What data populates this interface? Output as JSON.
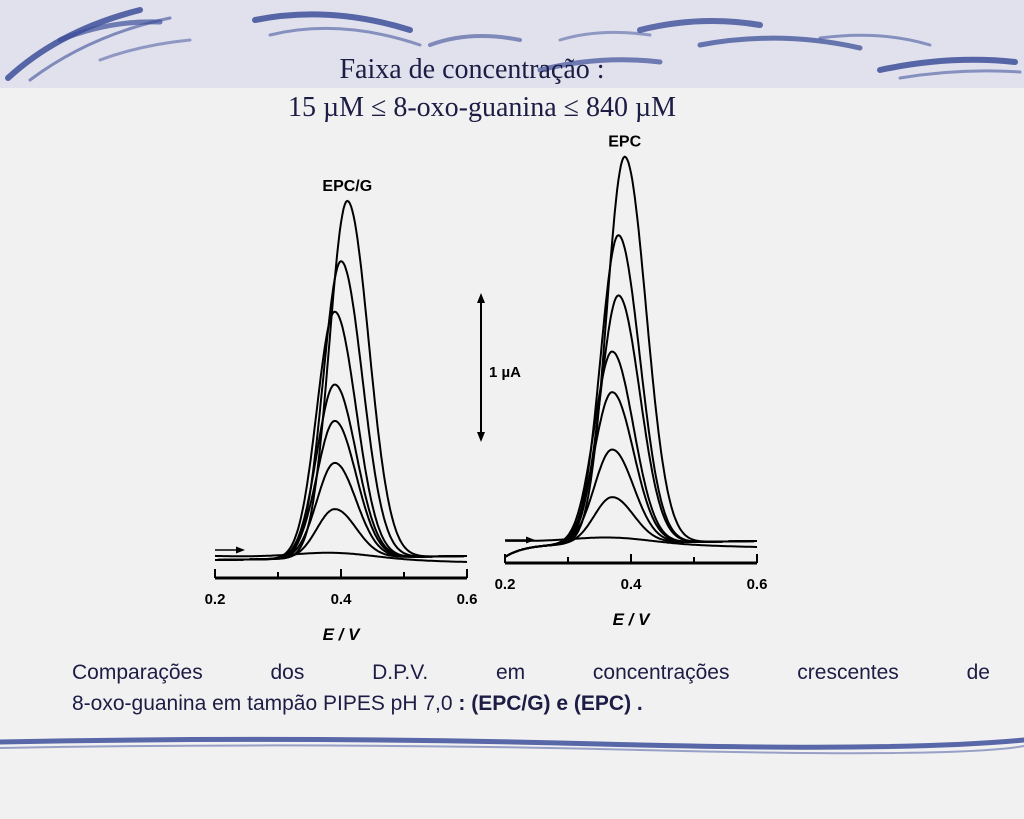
{
  "slide": {
    "title_line_1": "Faixa de concentração :",
    "title_line_2": "15 µM ≤ 8-oxo-guanina ≤ 840 µM",
    "caption_words_line_1": [
      "Comparações",
      "dos",
      "D.P.V.",
      "em",
      "concentrações",
      "crescentes",
      "de"
    ],
    "caption_line_2_plain": "8-oxo-guanina em tampão PIPES pH 7,0 ",
    "caption_line_2_bold": ": (EPC/G) e  (EPC) .",
    "scale_bar_label": "1 µA",
    "colors": {
      "background": "#f1f1f2",
      "text": "#1c1c44",
      "decoration": "#3d4f9a",
      "trace": "#000000"
    }
  },
  "chart_data": [
    {
      "type": "line",
      "label": "EPC/G",
      "xlabel": "E / V",
      "ylabel": "",
      "xlim": [
        0.2,
        0.6
      ],
      "x_ticks": [
        "0.2",
        "0.4",
        "0.6"
      ],
      "units_y": "µA",
      "scale_bar_uA": 1,
      "peak_potential_V": 0.39,
      "series": [
        {
          "peak_current_uA": 0.0,
          "peak_x": 0.39
        },
        {
          "peak_current_uA": 0.35,
          "peak_x": 0.39
        },
        {
          "peak_current_uA": 0.68,
          "peak_x": 0.39
        },
        {
          "peak_current_uA": 0.98,
          "peak_x": 0.39
        },
        {
          "peak_current_uA": 1.24,
          "peak_x": 0.39
        },
        {
          "peak_current_uA": 1.76,
          "peak_x": 0.39
        },
        {
          "peak_current_uA": 2.12,
          "peak_x": 0.4
        },
        {
          "peak_current_uA": 2.55,
          "peak_x": 0.41
        }
      ]
    },
    {
      "type": "line",
      "label": "EPC",
      "xlabel": "E / V",
      "ylabel": "",
      "xlim": [
        0.2,
        0.6
      ],
      "x_ticks": [
        "0.2",
        "0.4",
        "0.6"
      ],
      "units_y": "µA",
      "scale_bar_uA": 1,
      "peak_potential_V": 0.37,
      "series": [
        {
          "peak_current_uA": 0.0,
          "peak_x": 0.37
        },
        {
          "peak_current_uA": 0.33,
          "peak_x": 0.37
        },
        {
          "peak_current_uA": 0.67,
          "peak_x": 0.37
        },
        {
          "peak_current_uA": 1.08,
          "peak_x": 0.37
        },
        {
          "peak_current_uA": 1.37,
          "peak_x": 0.37
        },
        {
          "peak_current_uA": 1.77,
          "peak_x": 0.38
        },
        {
          "peak_current_uA": 2.2,
          "peak_x": 0.38
        },
        {
          "peak_current_uA": 2.76,
          "peak_x": 0.39
        }
      ]
    }
  ]
}
